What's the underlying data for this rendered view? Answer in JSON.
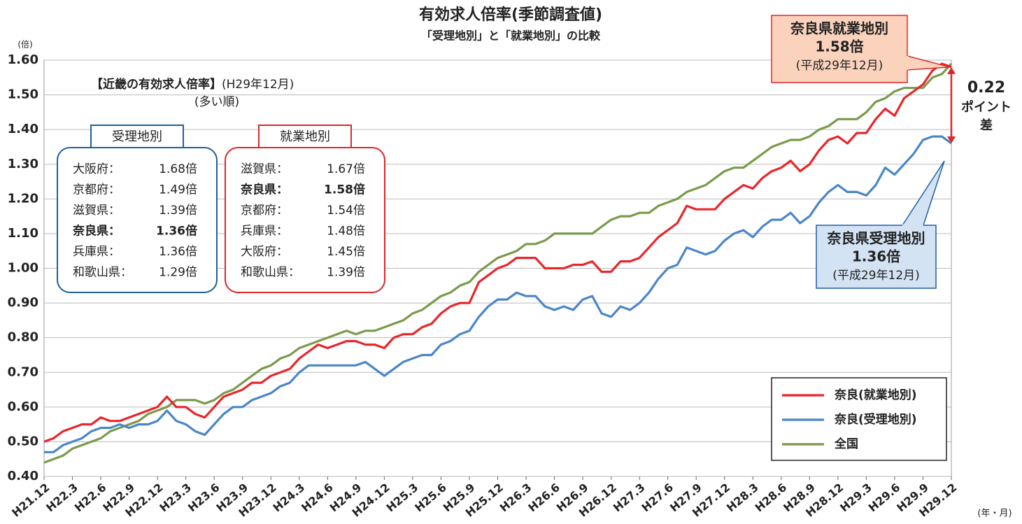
{
  "chart_data": {
    "type": "line",
    "title": "有効求人倍率(季節調査値)",
    "subtitle": "「受理地別」と「就業地別」の比較",
    "y_unit": "(倍)",
    "x_unit": "(年・月)",
    "categories": [
      "H21.12",
      null,
      null,
      "H22.3",
      null,
      null,
      "H22.6",
      null,
      null,
      "H22.9",
      null,
      null,
      "H22.12",
      null,
      null,
      "H23.3",
      null,
      null,
      "H23.6",
      null,
      null,
      "H23.9",
      null,
      null,
      "H23.12",
      null,
      null,
      "H24.3",
      null,
      null,
      "H24.6",
      null,
      null,
      "H24.9",
      null,
      null,
      "H24.12",
      null,
      null,
      "H25.3",
      null,
      null,
      "H25.6",
      null,
      null,
      "H25.9",
      null,
      null,
      "H25.12",
      null,
      null,
      "H26.3",
      null,
      null,
      "H26.6",
      null,
      null,
      "H26.9",
      null,
      null,
      "H26.12",
      null,
      null,
      "H27.3",
      null,
      null,
      "H27.6",
      null,
      null,
      "H27.9",
      null,
      null,
      "H27.12",
      null,
      null,
      "H28.3",
      null,
      null,
      "H28.6",
      null,
      null,
      "H28.9",
      null,
      null,
      "H28.12",
      null,
      null,
      "H29.3",
      null,
      null,
      "H29.6",
      null,
      null,
      "H29.9",
      null,
      null,
      "H29.12"
    ],
    "series": [
      {
        "name": "奈良(就業地別)",
        "color": "#e8262b",
        "values": [
          0.5,
          0.51,
          0.53,
          0.54,
          0.55,
          0.55,
          0.57,
          0.56,
          0.56,
          0.57,
          0.58,
          0.59,
          0.6,
          0.63,
          0.6,
          0.6,
          0.58,
          0.57,
          0.6,
          0.63,
          0.64,
          0.65,
          0.67,
          0.67,
          0.69,
          0.7,
          0.71,
          0.74,
          0.76,
          0.78,
          0.77,
          0.78,
          0.79,
          0.79,
          0.78,
          0.78,
          0.77,
          0.8,
          0.81,
          0.81,
          0.83,
          0.84,
          0.87,
          0.89,
          0.9,
          0.9,
          0.96,
          0.98,
          1.0,
          1.01,
          1.03,
          1.03,
          1.03,
          1.0,
          1.0,
          1.0,
          1.01,
          1.01,
          1.02,
          0.99,
          0.99,
          1.02,
          1.02,
          1.03,
          1.06,
          1.09,
          1.11,
          1.13,
          1.18,
          1.17,
          1.17,
          1.17,
          1.2,
          1.22,
          1.24,
          1.23,
          1.26,
          1.28,
          1.29,
          1.31,
          1.28,
          1.3,
          1.34,
          1.37,
          1.38,
          1.36,
          1.39,
          1.39,
          1.43,
          1.46,
          1.44,
          1.49,
          1.51,
          1.53,
          1.57,
          1.59,
          1.58
        ]
      },
      {
        "name": "奈良(受理地別)",
        "color": "#4a86c8",
        "values": [
          0.47,
          0.47,
          0.49,
          0.5,
          0.51,
          0.53,
          0.54,
          0.54,
          0.55,
          0.54,
          0.55,
          0.55,
          0.56,
          0.59,
          0.56,
          0.55,
          0.53,
          0.52,
          0.55,
          0.58,
          0.6,
          0.6,
          0.62,
          0.63,
          0.64,
          0.66,
          0.67,
          0.7,
          0.72,
          0.72,
          0.72,
          0.72,
          0.72,
          0.72,
          0.73,
          0.71,
          0.69,
          0.71,
          0.73,
          0.74,
          0.75,
          0.75,
          0.78,
          0.79,
          0.81,
          0.82,
          0.86,
          0.89,
          0.91,
          0.91,
          0.93,
          0.92,
          0.92,
          0.89,
          0.88,
          0.89,
          0.88,
          0.91,
          0.92,
          0.87,
          0.86,
          0.89,
          0.88,
          0.9,
          0.93,
          0.97,
          1.0,
          1.01,
          1.06,
          1.05,
          1.04,
          1.05,
          1.08,
          1.1,
          1.11,
          1.09,
          1.12,
          1.14,
          1.14,
          1.16,
          1.13,
          1.15,
          1.19,
          1.22,
          1.24,
          1.22,
          1.22,
          1.21,
          1.24,
          1.29,
          1.27,
          1.3,
          1.33,
          1.37,
          1.38,
          1.38,
          1.36
        ]
      },
      {
        "name": "全国",
        "color": "#7a9a4a",
        "values": [
          0.44,
          0.45,
          0.46,
          0.48,
          0.49,
          0.5,
          0.51,
          0.53,
          0.54,
          0.55,
          0.56,
          0.58,
          0.59,
          0.6,
          0.62,
          0.62,
          0.62,
          0.61,
          0.62,
          0.64,
          0.65,
          0.67,
          0.69,
          0.71,
          0.72,
          0.74,
          0.75,
          0.77,
          0.78,
          0.79,
          0.8,
          0.81,
          0.82,
          0.81,
          0.82,
          0.82,
          0.83,
          0.84,
          0.85,
          0.87,
          0.88,
          0.9,
          0.92,
          0.93,
          0.95,
          0.96,
          0.99,
          1.01,
          1.03,
          1.04,
          1.05,
          1.07,
          1.07,
          1.08,
          1.1,
          1.1,
          1.1,
          1.1,
          1.1,
          1.12,
          1.14,
          1.15,
          1.15,
          1.16,
          1.16,
          1.18,
          1.19,
          1.2,
          1.22,
          1.23,
          1.24,
          1.26,
          1.28,
          1.29,
          1.29,
          1.31,
          1.33,
          1.35,
          1.36,
          1.37,
          1.37,
          1.38,
          1.4,
          1.41,
          1.43,
          1.43,
          1.43,
          1.45,
          1.48,
          1.49,
          1.51,
          1.52,
          1.52,
          1.52,
          1.55,
          1.56,
          1.59
        ]
      }
    ],
    "ylim": [
      0.4,
      1.6
    ],
    "yticks": [
      {
        "value": 0.4,
        "label": "0.40"
      },
      {
        "value": 0.5,
        "label": "0.50"
      },
      {
        "value": 0.6,
        "label": "0.60"
      },
      {
        "value": 0.7,
        "label": "0.70"
      },
      {
        "value": 0.8,
        "label": "0.80"
      },
      {
        "value": 0.9,
        "label": "0.90"
      },
      {
        "value": 1.0,
        "label": "1.00"
      },
      {
        "value": 1.1,
        "label": "1.10"
      },
      {
        "value": 1.2,
        "label": "1.20"
      },
      {
        "value": 1.3,
        "label": "1.30"
      },
      {
        "value": 1.4,
        "label": "1.40"
      },
      {
        "value": 1.5,
        "label": "1.50"
      },
      {
        "value": 1.6,
        "label": "1.60"
      }
    ],
    "grid": true,
    "legend": "lower right",
    "ranking": {
      "title": "【近畿の有効求人倍率】",
      "period": "(H29年12月)",
      "note": "(多い順)",
      "groups": [
        {
          "name": "受理地別",
          "color": "#1f5fa0",
          "highlight": 3,
          "rows": [
            [
              "大阪府：",
              "1.68倍"
            ],
            [
              "京都府：",
              "1.49倍"
            ],
            [
              "滋賀県：",
              "1.39倍"
            ],
            [
              "奈良県：",
              "1.36倍"
            ],
            [
              "兵庫県：",
              "1.36倍"
            ],
            [
              "和歌山県：",
              "1.29倍"
            ]
          ]
        },
        {
          "name": "就業地別",
          "color": "#e0262b",
          "highlight": 1,
          "rows": [
            [
              "滋賀県：",
              "1.67倍"
            ],
            [
              "奈良県：",
              "1.58倍"
            ],
            [
              "京都府：",
              "1.54倍"
            ],
            [
              "兵庫県：",
              "1.48倍"
            ],
            [
              "大阪府：",
              "1.45倍"
            ],
            [
              "和歌山県：",
              "1.39倍"
            ]
          ]
        }
      ]
    },
    "callouts": [
      {
        "title": "奈良県就業地別",
        "value": "1.58倍",
        "period": "(平成29年12月)"
      },
      {
        "title": "奈良県受理地別",
        "value": "1.36倍",
        "period": "(平成29年12月)"
      }
    ],
    "difference": {
      "value": "0.22",
      "unit": "ポイント",
      "suffix": "差"
    }
  }
}
